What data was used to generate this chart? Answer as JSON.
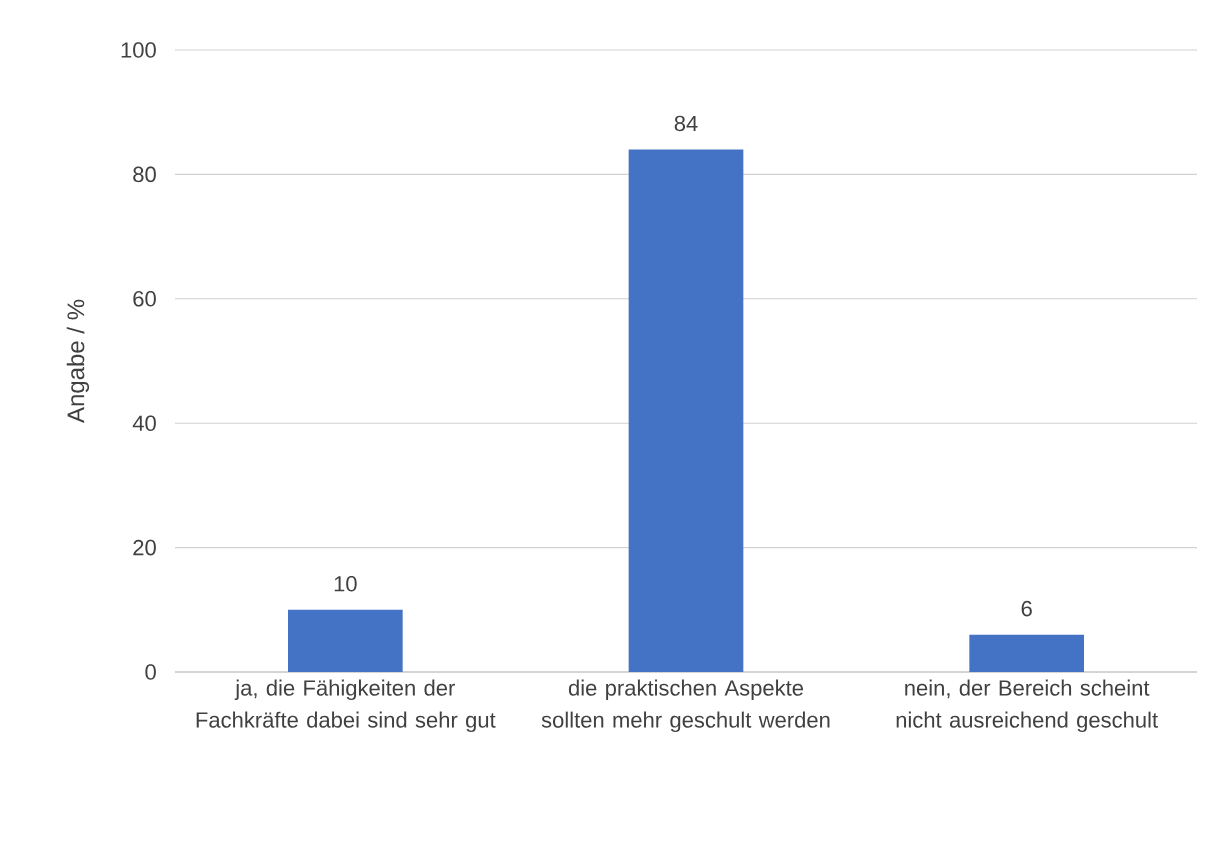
{
  "chart_data": {
    "type": "bar",
    "ylabel": "Angabe / %",
    "categories": [
      "ja, die Fähigkeiten der Fachkräfte dabei sind sehr gut",
      "die praktischen Aspekte sollten mehr geschult werden",
      "nein, der Bereich scheint nicht ausreichend geschult"
    ],
    "values": [
      10,
      84,
      6
    ],
    "color": "#4472c4",
    "ylim": [
      0,
      100
    ],
    "yticks": [
      0,
      20,
      40,
      60,
      80,
      100
    ],
    "grid": "y",
    "data_labels": true
  }
}
